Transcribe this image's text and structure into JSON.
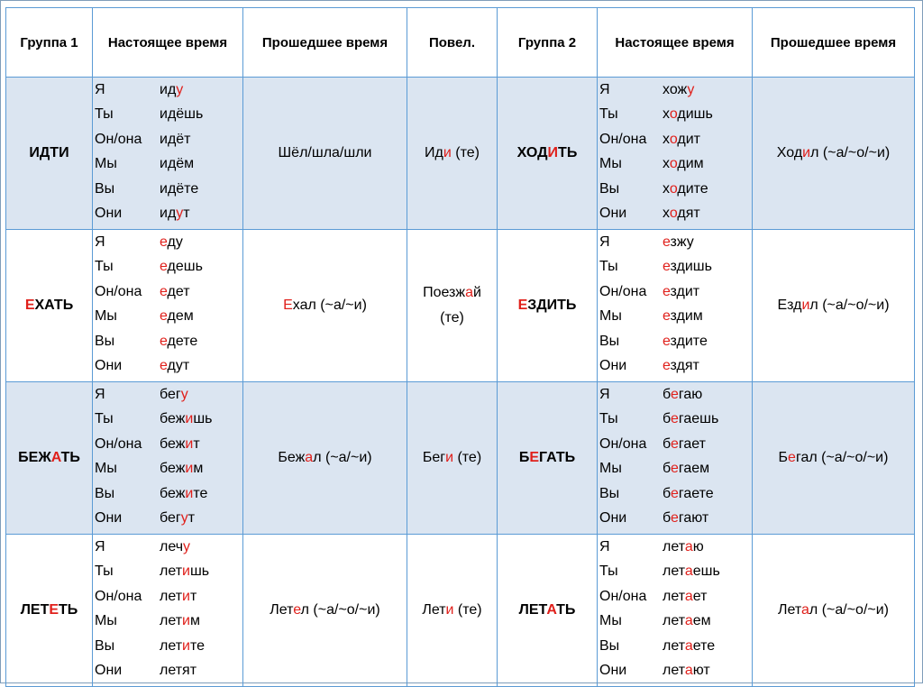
{
  "headers": {
    "group1": "Группа 1",
    "present1": "Настоящее время",
    "past1": "Прошедшее время",
    "imperative": "Повел.",
    "group2": "Группа 2",
    "present2": "Настоящее время",
    "past2": "Прошедшее время"
  },
  "pronouns": [
    "Я",
    "Ты",
    "Он/она",
    "Мы",
    "Вы",
    "Они"
  ],
  "rows": [
    {
      "verb1": [
        {
          "t": "ИДТИ"
        }
      ],
      "conj1": [
        [
          {
            "t": "ид"
          },
          {
            "t": "у",
            "r": true
          }
        ],
        [
          {
            "t": "идёшь"
          }
        ],
        [
          {
            "t": "идёт"
          }
        ],
        [
          {
            "t": "идём"
          }
        ],
        [
          {
            "t": "идёте"
          }
        ],
        [
          {
            "t": "ид"
          },
          {
            "t": "у",
            "r": true
          },
          {
            "t": "т"
          }
        ]
      ],
      "past1": [
        {
          "t": "Шёл/шла/шли"
        }
      ],
      "imper": [
        {
          "t": "Ид"
        },
        {
          "t": "и",
          "r": true
        },
        {
          "t": " (те)"
        }
      ],
      "verb2": [
        {
          "t": "ХОД"
        },
        {
          "t": "И",
          "r": true
        },
        {
          "t": "ТЬ"
        }
      ],
      "conj2": [
        [
          {
            "t": "хож"
          },
          {
            "t": "у",
            "r": true
          }
        ],
        [
          {
            "t": "х"
          },
          {
            "t": "о",
            "r": true
          },
          {
            "t": "дишь"
          }
        ],
        [
          {
            "t": "х"
          },
          {
            "t": "о",
            "r": true
          },
          {
            "t": "дит"
          }
        ],
        [
          {
            "t": "х"
          },
          {
            "t": "о",
            "r": true
          },
          {
            "t": "дим"
          }
        ],
        [
          {
            "t": "х"
          },
          {
            "t": "о",
            "r": true
          },
          {
            "t": "дите"
          }
        ],
        [
          {
            "t": "х"
          },
          {
            "t": "о",
            "r": true
          },
          {
            "t": "дят"
          }
        ]
      ],
      "past2": [
        {
          "t": "Ход"
        },
        {
          "t": "и",
          "r": true
        },
        {
          "t": "л (~а/~о/~и)"
        }
      ]
    },
    {
      "verb1": [
        {
          "t": "Е",
          "r": true
        },
        {
          "t": "ХАТЬ"
        }
      ],
      "conj1": [
        [
          {
            "t": "е",
            "r": true
          },
          {
            "t": "ду"
          }
        ],
        [
          {
            "t": "е",
            "r": true
          },
          {
            "t": "дешь"
          }
        ],
        [
          {
            "t": "е",
            "r": true
          },
          {
            "t": "дет"
          }
        ],
        [
          {
            "t": "е",
            "r": true
          },
          {
            "t": "дем"
          }
        ],
        [
          {
            "t": "е",
            "r": true
          },
          {
            "t": "дете"
          }
        ],
        [
          {
            "t": "е",
            "r": true
          },
          {
            "t": "дут"
          }
        ]
      ],
      "past1": [
        {
          "t": "Е",
          "r": true
        },
        {
          "t": "хал (~а/~и)"
        }
      ],
      "imper": [
        {
          "t": "Поезж"
        },
        {
          "t": "а",
          "r": true
        },
        {
          "t": "й"
        },
        {
          "br": true
        },
        {
          "t": "(те)"
        }
      ],
      "verb2": [
        {
          "t": "Е",
          "r": true
        },
        {
          "t": "ЗДИТЬ"
        }
      ],
      "conj2": [
        [
          {
            "t": "е",
            "r": true
          },
          {
            "t": "зжу"
          }
        ],
        [
          {
            "t": "е",
            "r": true
          },
          {
            "t": "здишь"
          }
        ],
        [
          {
            "t": "е",
            "r": true
          },
          {
            "t": "здит"
          }
        ],
        [
          {
            "t": "е",
            "r": true
          },
          {
            "t": "здим"
          }
        ],
        [
          {
            "t": "е",
            "r": true
          },
          {
            "t": "здите"
          }
        ],
        [
          {
            "t": "е",
            "r": true
          },
          {
            "t": "здят"
          }
        ]
      ],
      "past2": [
        {
          "t": "Езд"
        },
        {
          "t": "и",
          "r": true
        },
        {
          "t": "л (~а/~о/~и)"
        }
      ]
    },
    {
      "verb1": [
        {
          "t": "БЕЖ"
        },
        {
          "t": "А",
          "r": true
        },
        {
          "t": "ТЬ"
        }
      ],
      "conj1": [
        [
          {
            "t": "бег"
          },
          {
            "t": "у",
            "r": true
          }
        ],
        [
          {
            "t": "беж"
          },
          {
            "t": "и",
            "r": true
          },
          {
            "t": "шь"
          }
        ],
        [
          {
            "t": "беж"
          },
          {
            "t": "и",
            "r": true
          },
          {
            "t": "т"
          }
        ],
        [
          {
            "t": "беж"
          },
          {
            "t": "и",
            "r": true
          },
          {
            "t": "м"
          }
        ],
        [
          {
            "t": "беж"
          },
          {
            "t": "и",
            "r": true
          },
          {
            "t": "те"
          }
        ],
        [
          {
            "t": "бег"
          },
          {
            "t": "у",
            "r": true
          },
          {
            "t": "т"
          }
        ]
      ],
      "past1": [
        {
          "t": "Беж"
        },
        {
          "t": "а",
          "r": true
        },
        {
          "t": "л (~а/~и)"
        }
      ],
      "imper": [
        {
          "t": "Бег"
        },
        {
          "t": "и",
          "r": true
        },
        {
          "t": " (те)"
        }
      ],
      "verb2": [
        {
          "t": "Б"
        },
        {
          "t": "Е",
          "r": true
        },
        {
          "t": "ГАТЬ"
        }
      ],
      "conj2": [
        [
          {
            "t": "б"
          },
          {
            "t": "е",
            "r": true
          },
          {
            "t": "гаю"
          }
        ],
        [
          {
            "t": "б"
          },
          {
            "t": "е",
            "r": true
          },
          {
            "t": "гаешь"
          }
        ],
        [
          {
            "t": "б"
          },
          {
            "t": "е",
            "r": true
          },
          {
            "t": "гает"
          }
        ],
        [
          {
            "t": "б"
          },
          {
            "t": "е",
            "r": true
          },
          {
            "t": "гаем"
          }
        ],
        [
          {
            "t": "б"
          },
          {
            "t": "е",
            "r": true
          },
          {
            "t": "гаете"
          }
        ],
        [
          {
            "t": "б"
          },
          {
            "t": "е",
            "r": true
          },
          {
            "t": "гают"
          }
        ]
      ],
      "past2": [
        {
          "t": "Б"
        },
        {
          "t": "е",
          "r": true
        },
        {
          "t": "гал (~а/~о/~и)"
        }
      ]
    },
    {
      "verb1": [
        {
          "t": "ЛЕТ"
        },
        {
          "t": "Е",
          "r": true
        },
        {
          "t": "ТЬ"
        }
      ],
      "conj1": [
        [
          {
            "t": "леч"
          },
          {
            "t": "у",
            "r": true
          }
        ],
        [
          {
            "t": "лет"
          },
          {
            "t": "и",
            "r": true
          },
          {
            "t": "шь"
          }
        ],
        [
          {
            "t": "лет"
          },
          {
            "t": "и",
            "r": true
          },
          {
            "t": "т"
          }
        ],
        [
          {
            "t": "лет"
          },
          {
            "t": "и",
            "r": true
          },
          {
            "t": "м"
          }
        ],
        [
          {
            "t": "лет"
          },
          {
            "t": "и",
            "r": true
          },
          {
            "t": "те"
          }
        ],
        [
          {
            "t": "летят"
          }
        ]
      ],
      "past1": [
        {
          "t": "Лет"
        },
        {
          "t": "е",
          "r": true
        },
        {
          "t": "л (~а/~о/~и)"
        }
      ],
      "imper": [
        {
          "t": "Лет"
        },
        {
          "t": "и",
          "r": true
        },
        {
          "t": " (те)"
        }
      ],
      "verb2": [
        {
          "t": "ЛЕТ"
        },
        {
          "t": "А",
          "r": true
        },
        {
          "t": "ТЬ"
        }
      ],
      "conj2": [
        [
          {
            "t": "лет"
          },
          {
            "t": "а",
            "r": true
          },
          {
            "t": "ю"
          }
        ],
        [
          {
            "t": "лет"
          },
          {
            "t": "а",
            "r": true
          },
          {
            "t": "ешь"
          }
        ],
        [
          {
            "t": "лет"
          },
          {
            "t": "а",
            "r": true
          },
          {
            "t": "ет"
          }
        ],
        [
          {
            "t": "лет"
          },
          {
            "t": "а",
            "r": true
          },
          {
            "t": "ем"
          }
        ],
        [
          {
            "t": "лет"
          },
          {
            "t": "а",
            "r": true
          },
          {
            "t": "ете"
          }
        ],
        [
          {
            "t": "лет"
          },
          {
            "t": "а",
            "r": true
          },
          {
            "t": "ют"
          }
        ]
      ],
      "past2": [
        {
          "t": "Лет"
        },
        {
          "t": "а",
          "r": true
        },
        {
          "t": "л (~а/~о/~и)"
        }
      ]
    }
  ],
  "colors": {
    "highlight": "#e0201b",
    "row_shade": "#dbe5f1",
    "border": "#5b9bd5"
  }
}
